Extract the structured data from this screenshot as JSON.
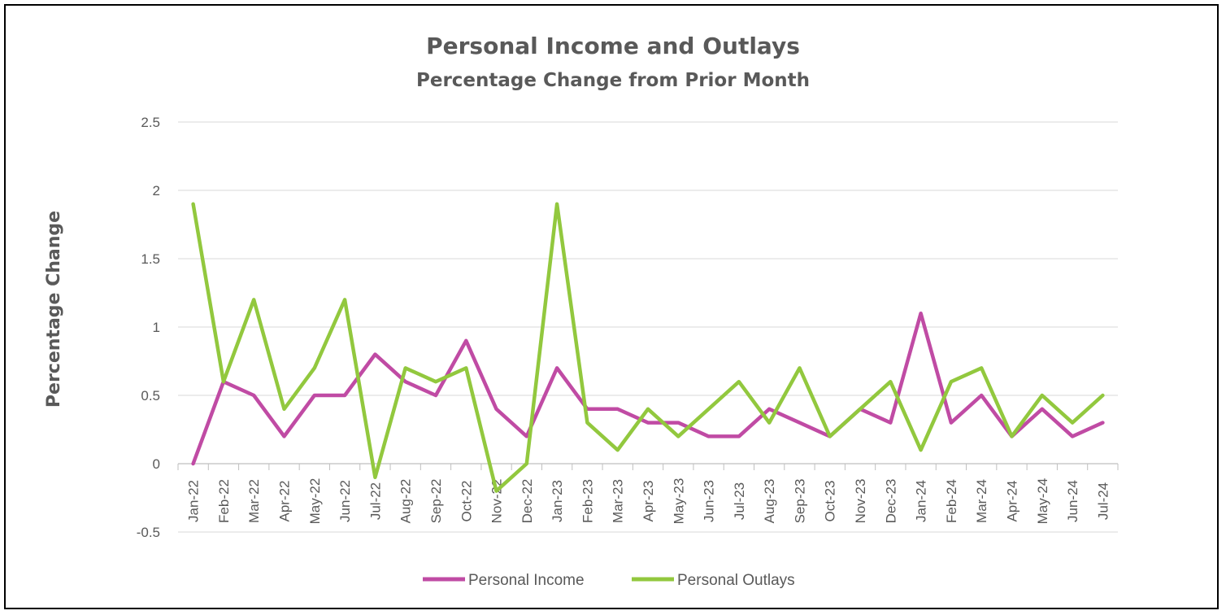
{
  "chart_data": {
    "type": "line",
    "title": "Personal Income and Outlays",
    "subtitle": "Percentage Change from Prior Month",
    "xlabel": "",
    "ylabel": "Percentage Change",
    "ylim": [
      -0.5,
      2.5
    ],
    "yticks": [
      "2.5",
      "2",
      "1.5",
      "1",
      "0.5",
      "0",
      "-0.5"
    ],
    "ytick_values": [
      2.5,
      2,
      1.5,
      1,
      0.5,
      0,
      -0.5
    ],
    "grid": true,
    "legend_position": "bottom",
    "categories": [
      "Jan-22",
      "Feb-22",
      "Mar-22",
      "Apr-22",
      "May-22",
      "Jun-22",
      "Jul-22",
      "Aug-22",
      "Sep-22",
      "Oct-22",
      "Nov-22",
      "Dec-22",
      "Jan-23",
      "Feb-23",
      "Mar-23",
      "Apr-23",
      "May-23",
      "Jun-23",
      "Jul-23",
      "Aug-23",
      "Sep-23",
      "Oct-23",
      "Nov-23",
      "Dec-23",
      "Jan-24",
      "Feb-24",
      "Mar-24",
      "Apr-24",
      "May-24",
      "Jun-24",
      "Jul-24"
    ],
    "series": [
      {
        "name": "Personal Income",
        "color": "#C04BA4",
        "values": [
          0,
          0.6,
          0.5,
          0.2,
          0.5,
          0.5,
          0.8,
          0.6,
          0.5,
          0.9,
          0.4,
          0.2,
          0.7,
          0.4,
          0.4,
          0.3,
          0.3,
          0.2,
          0.2,
          0.4,
          0.3,
          0.2,
          0.4,
          0.3,
          1.1,
          0.3,
          0.5,
          0.2,
          0.4,
          0.2,
          0.3
        ]
      },
      {
        "name": "Personal Outlays",
        "color": "#92C83E",
        "values": [
          1.9,
          0.6,
          1.2,
          0.4,
          0.7,
          1.2,
          -0.1,
          0.7,
          0.6,
          0.7,
          -0.2,
          0.0,
          1.9,
          0.3,
          0.1,
          0.4,
          0.2,
          0.4,
          0.6,
          0.3,
          0.7,
          0.2,
          0.4,
          0.6,
          0.1,
          0.6,
          0.7,
          0.2,
          0.5,
          0.3,
          0.5
        ]
      }
    ]
  }
}
